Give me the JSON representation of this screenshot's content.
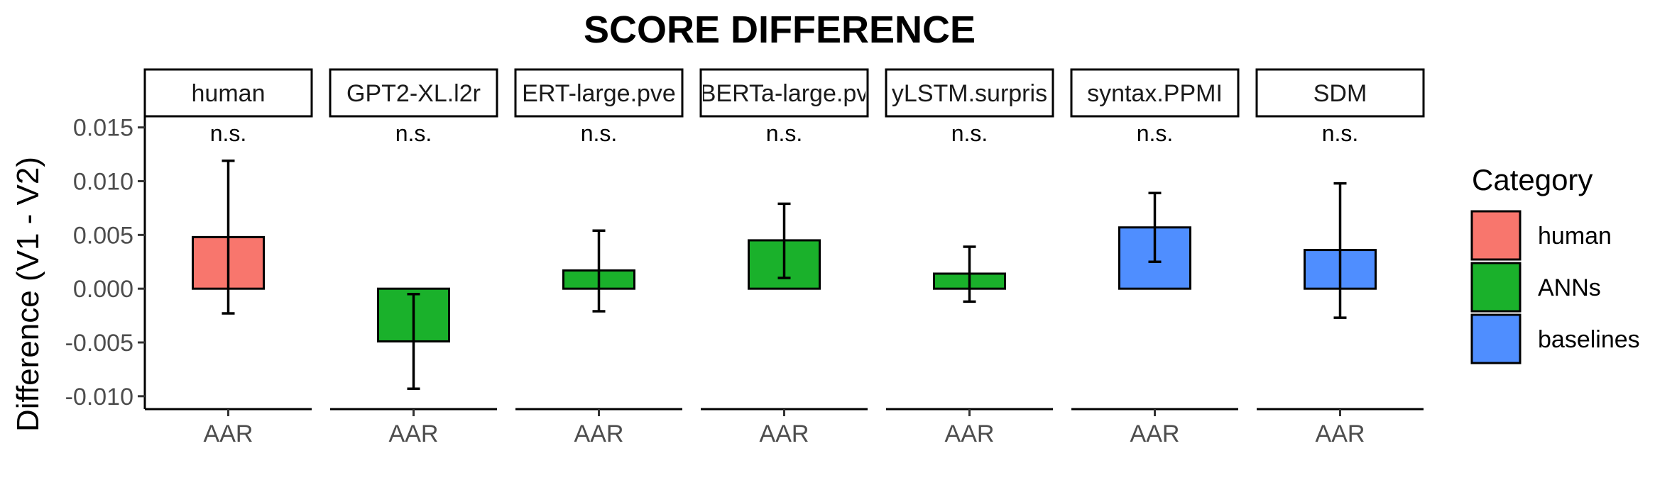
{
  "chart_data": {
    "type": "bar",
    "title": "SCORE DIFFERENCE",
    "ylabel": "Difference (V1 - V2)",
    "xlabel": "",
    "ylim": [
      -0.0112,
      0.0163
    ],
    "yticks": [
      -0.01,
      -0.005,
      0.0,
      0.005,
      0.01,
      0.015
    ],
    "ytick_labels": [
      "-0.010",
      "-0.005",
      "0.000",
      "0.005",
      "0.010",
      "0.015"
    ],
    "grid": false,
    "legend": {
      "title": "Category",
      "position": "right",
      "entries": [
        {
          "label": "human",
          "color": "#F8766D"
        },
        {
          "label": "ANNs",
          "color": "#1AB12B"
        },
        {
          "label": "baselines",
          "color": "#4F8EFF"
        }
      ]
    },
    "panels": [
      {
        "strip": "human",
        "category": "human",
        "x": "AAR",
        "value": 0.0048,
        "err_low": -0.0023,
        "err_high": 0.0119,
        "annotation": "n.s."
      },
      {
        "strip": "GPT2-XL.l2r",
        "category": "ANNs",
        "x": "AAR",
        "value": -0.0049,
        "err_low": -0.0093,
        "err_high": -0.0005,
        "annotation": "n.s."
      },
      {
        "strip": "ERT-large.pve",
        "category": "ANNs",
        "x": "AAR",
        "value": 0.0017,
        "err_low": -0.0021,
        "err_high": 0.0054,
        "annotation": "n.s."
      },
      {
        "strip": "BERTa-large.pv",
        "category": "ANNs",
        "x": "AAR",
        "value": 0.0045,
        "err_low": 0.001,
        "err_high": 0.0079,
        "annotation": "n.s."
      },
      {
        "strip": "yLSTM.surpris",
        "category": "ANNs",
        "x": "AAR",
        "value": 0.0014,
        "err_low": -0.0012,
        "err_high": 0.0039,
        "annotation": "n.s."
      },
      {
        "strip": "syntax.PPMI",
        "category": "baselines",
        "x": "AAR",
        "value": 0.0057,
        "err_low": 0.0025,
        "err_high": 0.0089,
        "annotation": "n.s."
      },
      {
        "strip": "SDM",
        "category": "baselines",
        "x": "AAR",
        "value": 0.0036,
        "err_low": -0.0027,
        "err_high": 0.0098,
        "annotation": "n.s."
      }
    ]
  }
}
